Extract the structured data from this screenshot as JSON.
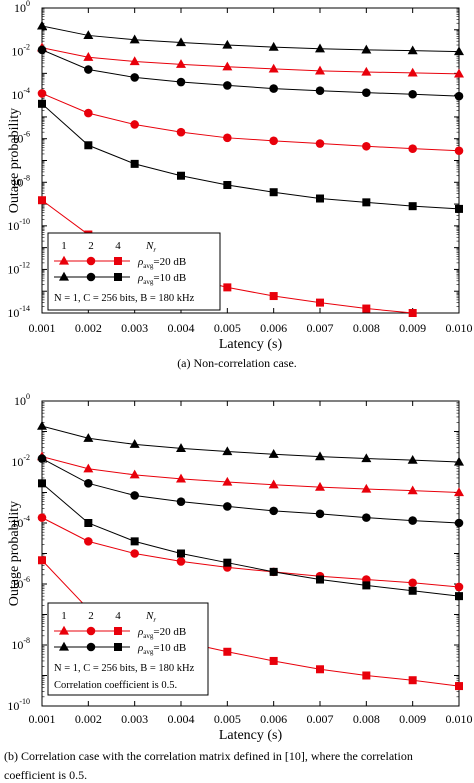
{
  "captions": {
    "a": "(a) Non-correlation case.",
    "b_line1": "(b) Correlation case with the correlation matrix defined in [10], where the correlation",
    "b_line2": "coefficient is 0.5."
  },
  "colors": {
    "red": "#e8000b",
    "black": "#000000"
  },
  "chart_data": [
    {
      "type": "line",
      "y_scale": "log",
      "xlabel": "Latency (s)",
      "ylabel": "Outage probability",
      "x": [
        0.001,
        0.002,
        0.003,
        0.004,
        0.005,
        0.006,
        0.007,
        0.008,
        0.009,
        0.01
      ],
      "xtick_labels": [
        "0.001",
        "0.002",
        "0.003",
        "0.004",
        "0.005",
        "0.006",
        "0.007",
        "0.008",
        "0.009",
        "0.010"
      ],
      "xlim": [
        0.001,
        0.01
      ],
      "ylim": [
        1e-14,
        1
      ],
      "ytick_labels": [
        {
          "base": "10",
          "exp": "0"
        },
        {
          "base": "10",
          "exp": "-2"
        },
        {
          "base": "10",
          "exp": "-4"
        },
        {
          "base": "10",
          "exp": "-6"
        },
        {
          "base": "10",
          "exp": "-8"
        },
        {
          "base": "10",
          "exp": "-10"
        },
        {
          "base": "10",
          "exp": "-12"
        },
        {
          "base": "10",
          "exp": "-14"
        }
      ],
      "grid": false,
      "legend_position": "bottom-left",
      "legend": {
        "nr_values": [
          "1",
          "2",
          "4"
        ],
        "nr_label": "N",
        "nr_sub": "r",
        "rows": [
          {
            "sym": "ρ",
            "sub": "avg",
            "text": "=20 dB",
            "color": "red"
          },
          {
            "sym": "ρ",
            "sub": "avg",
            "text": "=10 dB",
            "color": "black"
          }
        ],
        "params": "N = 1, C = 256 bits, B = 180 kHz",
        "note": ""
      },
      "series": [
        {
          "color": "red",
          "marker": "triangle",
          "values": [
            0.015,
            0.0055,
            0.0035,
            0.0026,
            0.002,
            0.0016,
            0.0013,
            0.00115,
            0.00105,
            0.00095
          ]
        },
        {
          "color": "red",
          "marker": "circle",
          "values": [
            0.00012,
            1.5e-05,
            4.5e-06,
            2e-06,
            1.1e-06,
            8e-07,
            6e-07,
            4.5e-07,
            3.5e-07,
            2.8e-07
          ]
        },
        {
          "color": "red",
          "marker": "square",
          "values": [
            1.5e-09,
            4e-11,
            2.5e-12,
            5e-13,
            1.5e-13,
            6e-14,
            3e-14,
            1.6e-14,
            1e-14,
            7e-15
          ]
        },
        {
          "color": "black",
          "marker": "triangle",
          "values": [
            0.15,
            0.055,
            0.035,
            0.026,
            0.02,
            0.016,
            0.0135,
            0.012,
            0.011,
            0.01
          ]
        },
        {
          "color": "black",
          "marker": "circle",
          "values": [
            0.012,
            0.0015,
            0.00065,
            0.0004,
            0.00028,
            0.0002,
            0.00016,
            0.00013,
            0.00011,
            9e-05
          ]
        },
        {
          "color": "black",
          "marker": "square",
          "values": [
            4e-05,
            5e-07,
            7e-08,
            2e-08,
            7.5e-09,
            3.5e-09,
            1.8e-09,
            1.2e-09,
            8e-10,
            6e-10
          ]
        }
      ]
    },
    {
      "type": "line",
      "y_scale": "log",
      "xlabel": "Latency (s)",
      "ylabel": "Outage probability",
      "x": [
        0.001,
        0.002,
        0.003,
        0.004,
        0.005,
        0.006,
        0.007,
        0.008,
        0.009,
        0.01
      ],
      "xtick_labels": [
        "0.001",
        "0.002",
        "0.003",
        "0.004",
        "0.005",
        "0.006",
        "0.007",
        "0.008",
        "0.009",
        "0.010"
      ],
      "xlim": [
        0.001,
        0.01
      ],
      "ylim": [
        1e-10,
        1
      ],
      "ytick_labels": [
        {
          "base": "10",
          "exp": "0"
        },
        {
          "base": "10",
          "exp": "-2"
        },
        {
          "base": "10",
          "exp": "-4"
        },
        {
          "base": "10",
          "exp": "-6"
        },
        {
          "base": "10",
          "exp": "-8"
        },
        {
          "base": "10",
          "exp": "-10"
        }
      ],
      "grid": false,
      "legend_position": "bottom-left",
      "legend": {
        "nr_values": [
          "1",
          "2",
          "4"
        ],
        "nr_label": "N",
        "nr_sub": "r",
        "rows": [
          {
            "sym": "ρ",
            "sub": "avg",
            "text": "=20 dB",
            "color": "red"
          },
          {
            "sym": "ρ",
            "sub": "avg",
            "text": "=10 dB",
            "color": "black"
          }
        ],
        "params": "N = 1, C = 256 bits, B = 180 kHz",
        "note": "Correlation coefficient is 0.5."
      },
      "series": [
        {
          "color": "red",
          "marker": "triangle",
          "values": [
            0.015,
            0.006,
            0.0038,
            0.0028,
            0.0022,
            0.0018,
            0.0015,
            0.0013,
            0.00115,
            0.001
          ]
        },
        {
          "color": "red",
          "marker": "circle",
          "values": [
            0.00015,
            2.5e-05,
            1e-05,
            5.5e-06,
            3.5e-06,
            2.5e-06,
            1.8e-06,
            1.4e-06,
            1.1e-06,
            8e-07
          ]
        },
        {
          "color": "red",
          "marker": "square",
          "values": [
            6e-06,
            1.5e-07,
            3.5e-08,
            1.3e-08,
            6e-09,
            3e-09,
            1.6e-09,
            1e-09,
            7e-10,
            4.5e-10
          ]
        },
        {
          "color": "black",
          "marker": "triangle",
          "values": [
            0.15,
            0.06,
            0.038,
            0.028,
            0.022,
            0.018,
            0.015,
            0.013,
            0.0115,
            0.01
          ]
        },
        {
          "color": "black",
          "marker": "circle",
          "values": [
            0.013,
            0.002,
            0.0008,
            0.0005,
            0.00035,
            0.00025,
            0.0002,
            0.00015,
            0.00012,
            0.0001
          ]
        },
        {
          "color": "black",
          "marker": "square",
          "values": [
            0.002,
            0.0001,
            2.5e-05,
            1e-05,
            5e-06,
            2.5e-06,
            1.4e-06,
            9e-07,
            6e-07,
            4e-07
          ]
        }
      ]
    }
  ]
}
